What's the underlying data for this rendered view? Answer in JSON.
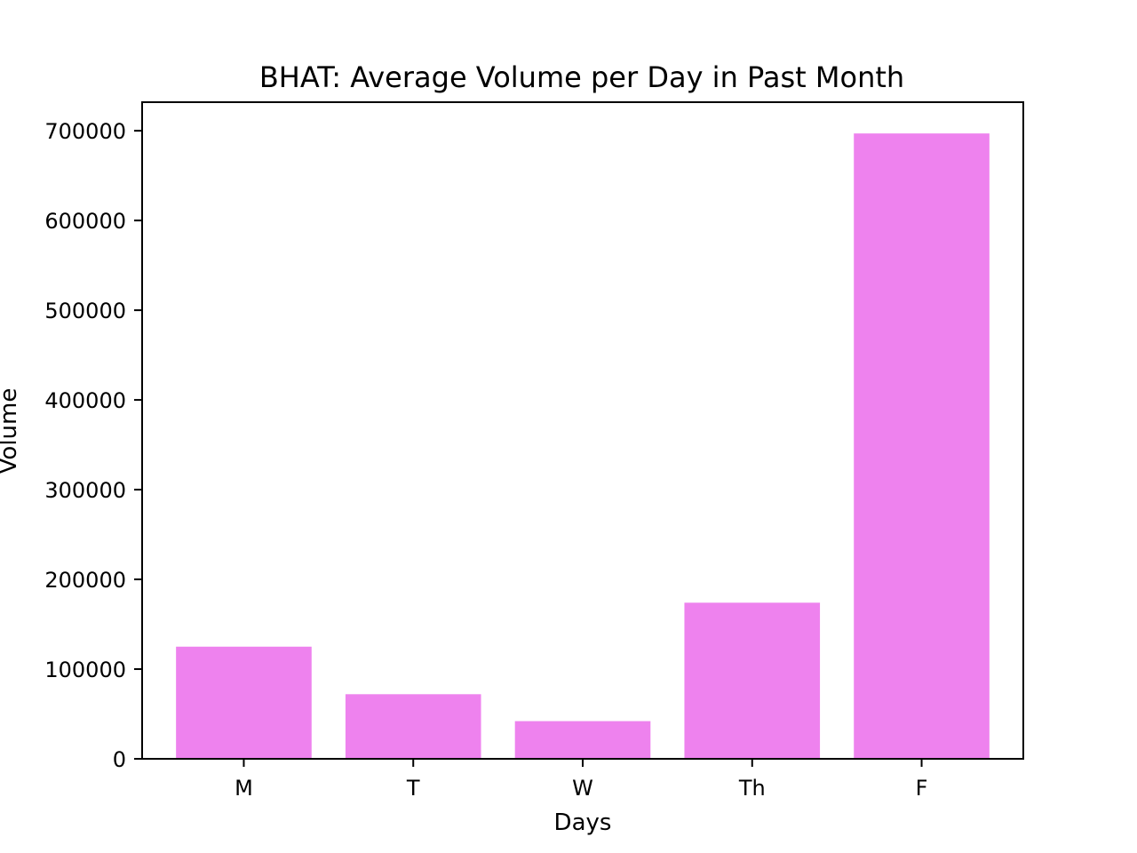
{
  "chart_data": {
    "type": "bar",
    "title": "BHAT: Average Volume per Day in Past Month",
    "xlabel": "Days",
    "ylabel": "Volume",
    "categories": [
      "M",
      "T",
      "W",
      "Th",
      "F"
    ],
    "values": [
      125000,
      72000,
      42000,
      174000,
      697000
    ],
    "ylim": [
      0,
      731850
    ],
    "yticks": [
      0,
      100000,
      200000,
      300000,
      400000,
      500000,
      600000,
      700000
    ],
    "bar_color": "#ee82ee",
    "grid": false,
    "legend": false
  }
}
